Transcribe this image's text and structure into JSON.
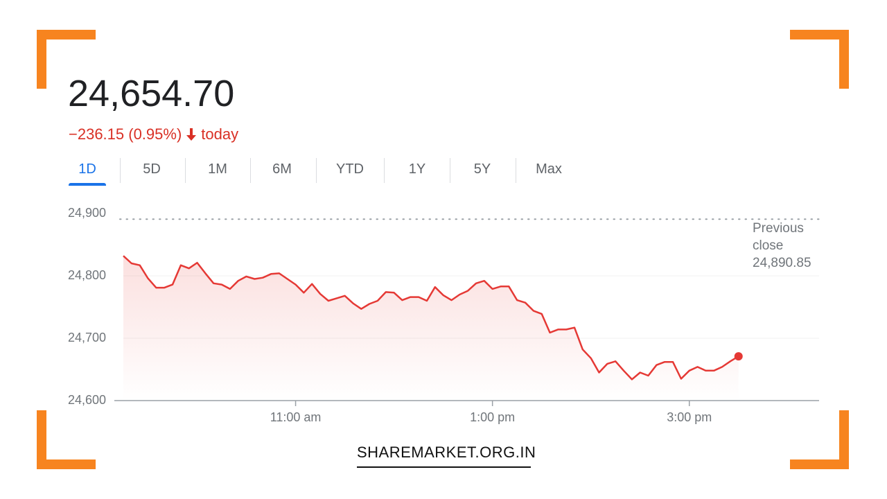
{
  "header": {
    "price": "24,654.70",
    "change": "−236.15 (0.95%)",
    "period": "today"
  },
  "tabs": [
    "1D",
    "5D",
    "1M",
    "6M",
    "YTD",
    "1Y",
    "5Y",
    "Max"
  ],
  "active_tab": 0,
  "chart_data": {
    "type": "line",
    "color": "#e53935",
    "x": [
      555,
      560,
      565,
      570,
      575,
      580,
      585,
      590,
      595,
      600,
      605,
      610,
      615,
      620,
      625,
      630,
      635,
      640,
      645,
      650,
      655,
      660,
      665,
      670,
      675,
      680,
      685,
      690,
      695,
      700,
      705,
      710,
      715,
      720,
      725,
      730,
      735,
      740,
      745,
      750,
      755,
      760,
      765,
      770,
      775,
      780,
      785,
      790,
      795,
      800,
      805,
      810,
      815,
      820,
      825,
      830,
      835,
      840,
      845,
      850,
      855,
      860,
      865,
      870,
      875,
      880,
      885,
      890,
      895,
      900,
      905,
      910,
      915,
      920,
      925,
      930
    ],
    "values": [
      24832,
      24820,
      24817,
      24796,
      24781,
      24781,
      24786,
      24817,
      24812,
      24821,
      24804,
      24788,
      24786,
      24779,
      24792,
      24799,
      24795,
      24797,
      24803,
      24804,
      24795,
      24786,
      24773,
      24787,
      24771,
      24760,
      24764,
      24768,
      24756,
      24747,
      24755,
      24760,
      24774,
      24773,
      24761,
      24766,
      24766,
      24760,
      24782,
      24769,
      24761,
      24770,
      24776,
      24788,
      24792,
      24779,
      24783,
      24783,
      24761,
      24757,
      24744,
      24739,
      24709,
      24714,
      24714,
      24717,
      24682,
      24668,
      24645,
      24659,
      24663,
      24648,
      24634,
      24645,
      24640,
      24657,
      24662,
      24662,
      24635,
      24648,
      24654,
      24648,
      24648,
      24654,
      24663,
      24671
    ],
    "xlim": [
      555,
      977
    ],
    "ylim": [
      24600,
      24900
    ],
    "xticks": [
      {
        "value": 660,
        "label": "11:00 am"
      },
      {
        "value": 780,
        "label": "1:00 pm"
      },
      {
        "value": 900,
        "label": "3:00 pm"
      }
    ],
    "yticks": [
      {
        "value": 24600,
        "label": "24,600"
      },
      {
        "value": 24700,
        "label": "24,700"
      },
      {
        "value": 24800,
        "label": "24,800"
      },
      {
        "value": 24900,
        "label": "24,900"
      }
    ],
    "previous_close": {
      "name": "Previous close",
      "value": 24890.85,
      "label": "24,890.85"
    },
    "grid": true
  },
  "footer": "SHAREMARKET.ORG.IN"
}
